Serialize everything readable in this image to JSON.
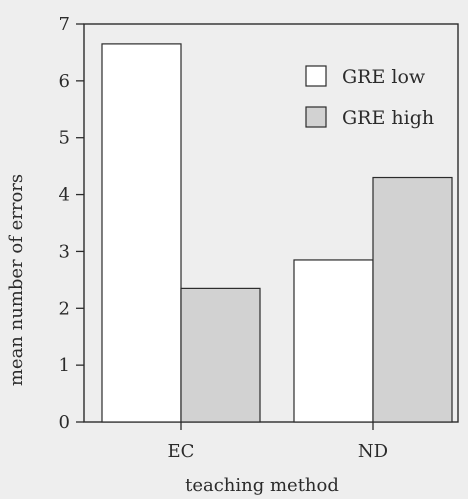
{
  "chart_data": {
    "type": "bar",
    "categories": [
      "EC",
      "ND"
    ],
    "series": [
      {
        "name": "GRE low",
        "values": [
          6.65,
          2.85
        ],
        "fill": "#ffffff"
      },
      {
        "name": "GRE high",
        "values": [
          2.35,
          4.3
        ],
        "fill": "#d2d2d2"
      }
    ],
    "xlabel": "teaching method",
    "ylabel": "mean number of errors",
    "ylim": [
      0,
      7
    ],
    "yticks": [
      0,
      1,
      2,
      3,
      4,
      5,
      6,
      7
    ],
    "grid": false,
    "legend_position": "top-right",
    "colors": {
      "background": "#eeeeee",
      "axis": "#2b2b2b"
    }
  }
}
